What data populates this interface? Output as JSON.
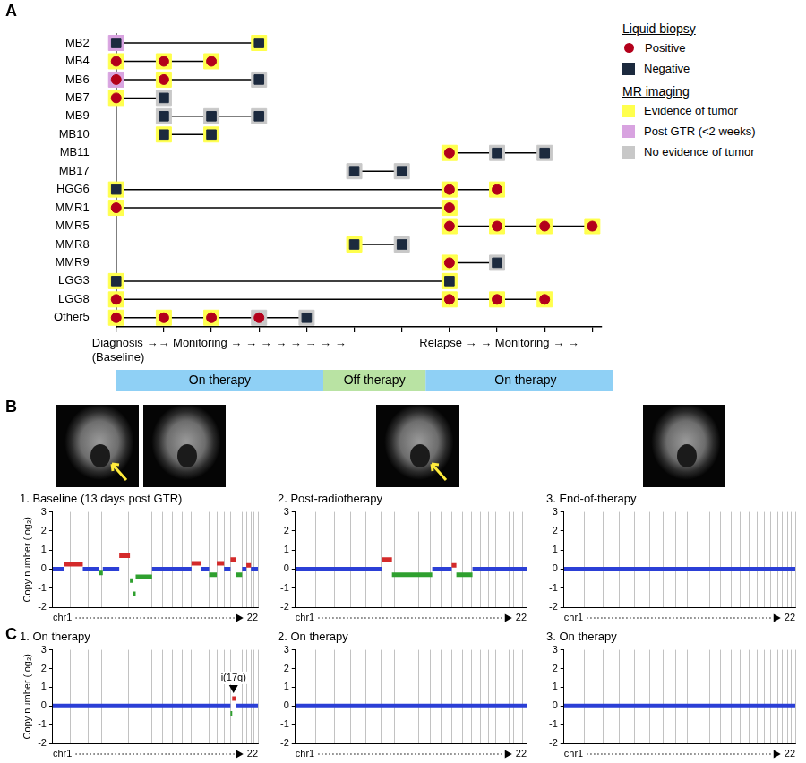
{
  "chart_data": [
    {
      "panel": "A",
      "type": "scatter",
      "categories": [
        "MB2",
        "MB4",
        "MB6",
        "MB7",
        "MB9",
        "MB10",
        "MB11",
        "MB17",
        "HGG6",
        "MMR1",
        "MMR5",
        "MMR8",
        "MMR9",
        "LGG3",
        "LGG8",
        "Other5"
      ],
      "rows": [
        {
          "x": [
            0,
            3
          ],
          "biopsy": [
            "Negative",
            "Negative"
          ],
          "mri": [
            "Post GTR (<2 weeks)",
            "Evidence of tumor"
          ]
        },
        {
          "x": [
            0,
            1,
            2
          ],
          "biopsy": [
            "Positive",
            "Positive",
            "Positive"
          ],
          "mri": [
            "Evidence of tumor",
            "Evidence of tumor",
            "Evidence of tumor"
          ]
        },
        {
          "x": [
            0,
            1,
            3
          ],
          "biopsy": [
            "Positive",
            "Positive",
            "Negative"
          ],
          "mri": [
            "Post GTR (<2 weeks)",
            "Evidence of tumor",
            "No evidence of tumor"
          ]
        },
        {
          "x": [
            0,
            1
          ],
          "biopsy": [
            "Positive",
            "Negative"
          ],
          "mri": [
            "Evidence of tumor",
            "No evidence of tumor"
          ]
        },
        {
          "x": [
            1,
            2,
            3
          ],
          "biopsy": [
            "Negative",
            "Negative",
            "Negative"
          ],
          "mri": [
            "No evidence of tumor",
            "No evidence of tumor",
            "No evidence of tumor"
          ]
        },
        {
          "x": [
            1,
            2
          ],
          "biopsy": [
            "Negative",
            "Negative"
          ],
          "mri": [
            "Evidence of tumor",
            "Evidence of tumor"
          ]
        },
        {
          "x": [
            7,
            8,
            9
          ],
          "biopsy": [
            "Positive",
            "Negative",
            "Negative"
          ],
          "mri": [
            "Evidence of tumor",
            "No evidence of tumor",
            "No evidence of tumor"
          ]
        },
        {
          "x": [
            5,
            6
          ],
          "biopsy": [
            "Negative",
            "Negative"
          ],
          "mri": [
            "No evidence of tumor",
            "No evidence of tumor"
          ]
        },
        {
          "x": [
            0,
            7,
            8
          ],
          "biopsy": [
            "Negative",
            "Positive",
            "Positive"
          ],
          "mri": [
            "Evidence of tumor",
            "Evidence of tumor",
            "Evidence of tumor"
          ]
        },
        {
          "x": [
            0,
            7
          ],
          "biopsy": [
            "Positive",
            "Positive"
          ],
          "mri": [
            "Evidence of tumor",
            "Evidence of tumor"
          ]
        },
        {
          "x": [
            7,
            8,
            9,
            10
          ],
          "biopsy": [
            "Positive",
            "Positive",
            "Positive",
            "Positive"
          ],
          "mri": [
            "Evidence of tumor",
            "Evidence of tumor",
            "Evidence of tumor",
            "Evidence of tumor"
          ]
        },
        {
          "x": [
            5,
            6
          ],
          "biopsy": [
            "Negative",
            "Negative"
          ],
          "mri": [
            "Evidence of tumor",
            "No evidence of tumor"
          ]
        },
        {
          "x": [
            7,
            8
          ],
          "biopsy": [
            "Positive",
            "Negative"
          ],
          "mri": [
            "Evidence of tumor",
            "No evidence of tumor"
          ]
        },
        {
          "x": [
            0,
            7
          ],
          "biopsy": [
            "Negative",
            "Negative"
          ],
          "mri": [
            "Evidence of tumor",
            "Evidence of tumor"
          ]
        },
        {
          "x": [
            0,
            7,
            8,
            9
          ],
          "biopsy": [
            "Positive",
            "Positive",
            "Positive",
            "Positive"
          ],
          "mri": [
            "Evidence of tumor",
            "Evidence of tumor",
            "Evidence of tumor",
            "Evidence of tumor"
          ]
        },
        {
          "x": [
            0,
            1,
            2,
            3,
            4
          ],
          "biopsy": [
            "Positive",
            "Positive",
            "Positive",
            "Positive",
            "Negative"
          ],
          "mri": [
            "Evidence of tumor",
            "Evidence of tumor",
            "Evidence of tumor",
            "No evidence of tumor",
            "No evidence of tumor"
          ]
        }
      ],
      "xlim": [
        0,
        10.2
      ],
      "xticks": [
        0,
        1,
        2,
        3,
        4,
        5,
        6,
        7,
        8,
        9,
        10
      ],
      "tick_labels": "y",
      "grid": false,
      "x_annotations": [
        "Diagnosis →→ Monitoring → → → → → → → →",
        "(Baseline)",
        "Relapse → → Monitoring → →"
      ],
      "therapy": [
        {
          "label": "On therapy",
          "start": 0,
          "end": 4.35,
          "color": "#8fd0f5"
        },
        {
          "label": "Off therapy",
          "start": 4.35,
          "end": 6.5,
          "color": "#b9e3a3"
        },
        {
          "label": "On therapy",
          "start": 6.5,
          "end": 10.7,
          "color": "#8fd0f5"
        }
      ],
      "legend": "right",
      "legend_groups": [
        {
          "title": "Liquid biopsy",
          "items": [
            {
              "name": "Positive",
              "color": "#b3001b",
              "marker": "circle"
            },
            {
              "name": "Negative",
              "color": "#1c2a3e",
              "marker": "square"
            }
          ]
        },
        {
          "title": "MR imaging",
          "items": [
            {
              "name": "Evidence of tumor",
              "color": "#ffff4d",
              "marker": "square"
            },
            {
              "name": "Post GTR (<2 weeks)",
              "color": "#d8a3e0",
              "marker": "square"
            },
            {
              "name": "No evidence of tumor",
              "color": "#c8c8c8",
              "marker": "square"
            }
          ]
        }
      ]
    },
    {
      "panel": "B",
      "type": "line",
      "title": "1. Baseline (13 days post GTR)",
      "y_label": "Copy number (log₂)",
      "xlim": [
        0,
        2872
      ],
      "xticks": [
        0,
        249,
        491,
        689,
        879,
        1060,
        1231,
        1390,
        1535,
        1673,
        1807,
        1942,
        2075,
        2189,
        2296,
        2398,
        2488,
        2571,
        2651,
        2710,
        2774,
        2821,
        2872
      ],
      "ylim": [
        -2,
        3
      ],
      "yticks": [
        -2,
        -1,
        0,
        1,
        2,
        3
      ],
      "grid": "x",
      "tick_labels": "y",
      "x_start_label": "chr1",
      "x_end_label": "22",
      "segments": [
        {
          "start": 0,
          "end": 160,
          "value": 0,
          "color": "#2b3fd6"
        },
        {
          "start": 160,
          "end": 420,
          "value": 0.25,
          "color": "#d42a2a"
        },
        {
          "start": 420,
          "end": 640,
          "value": 0,
          "color": "#2b3fd6"
        },
        {
          "start": 640,
          "end": 700,
          "value": -0.2,
          "color": "#2fa02f"
        },
        {
          "start": 700,
          "end": 930,
          "value": 0,
          "color": "#2b3fd6"
        },
        {
          "start": 930,
          "end": 1080,
          "value": 0.7,
          "color": "#d42a2a"
        },
        {
          "start": 1080,
          "end": 1120,
          "value": -0.6,
          "color": "#2fa02f"
        },
        {
          "start": 1120,
          "end": 1160,
          "value": -1.3,
          "color": "#2fa02f"
        },
        {
          "start": 1160,
          "end": 1390,
          "value": -0.4,
          "color": "#2fa02f"
        },
        {
          "start": 1390,
          "end": 1942,
          "value": 0,
          "color": "#2b3fd6"
        },
        {
          "start": 1942,
          "end": 2075,
          "value": 0.3,
          "color": "#d42a2a"
        },
        {
          "start": 2075,
          "end": 2189,
          "value": 0,
          "color": "#2b3fd6"
        },
        {
          "start": 2189,
          "end": 2296,
          "value": -0.3,
          "color": "#2fa02f"
        },
        {
          "start": 2296,
          "end": 2398,
          "value": 0.3,
          "color": "#d42a2a"
        },
        {
          "start": 2398,
          "end": 2488,
          "value": 0,
          "color": "#2b3fd6"
        },
        {
          "start": 2488,
          "end": 2571,
          "value": 0.5,
          "color": "#d42a2a"
        },
        {
          "start": 2571,
          "end": 2651,
          "value": -0.3,
          "color": "#2fa02f"
        },
        {
          "start": 2651,
          "end": 2710,
          "value": 0,
          "color": "#2b3fd6"
        },
        {
          "start": 2710,
          "end": 2774,
          "value": 0.2,
          "color": "#d42a2a"
        },
        {
          "start": 2774,
          "end": 2872,
          "value": 0,
          "color": "#2b3fd6"
        }
      ]
    },
    {
      "type": "line",
      "title": "2. Post-radiotherapy",
      "xlim": [
        0,
        2872
      ],
      "xticks": [
        0,
        249,
        491,
        689,
        879,
        1060,
        1231,
        1390,
        1535,
        1673,
        1807,
        1942,
        2075,
        2189,
        2296,
        2398,
        2488,
        2571,
        2651,
        2710,
        2774,
        2821,
        2872
      ],
      "ylim": [
        -2,
        3
      ],
      "yticks": [
        -2,
        -1,
        0,
        1,
        2,
        3
      ],
      "grid": "x",
      "tick_labels": "y",
      "x_start_label": "chr1",
      "x_end_label": "22",
      "segments": [
        {
          "start": 0,
          "end": 1080,
          "value": 0,
          "color": "#2b3fd6"
        },
        {
          "start": 1080,
          "end": 1200,
          "value": 0.5,
          "color": "#d42a2a"
        },
        {
          "start": 1200,
          "end": 1700,
          "value": -0.3,
          "color": "#2fa02f"
        },
        {
          "start": 1700,
          "end": 1942,
          "value": 0,
          "color": "#2b3fd6"
        },
        {
          "start": 1942,
          "end": 2000,
          "value": 0.2,
          "color": "#d42a2a"
        },
        {
          "start": 2000,
          "end": 2200,
          "value": -0.3,
          "color": "#2fa02f"
        },
        {
          "start": 2200,
          "end": 2872,
          "value": 0,
          "color": "#2b3fd6"
        }
      ]
    },
    {
      "type": "line",
      "title": "3. End-of-therapy",
      "xlim": [
        0,
        2872
      ],
      "xticks": [
        0,
        249,
        491,
        689,
        879,
        1060,
        1231,
        1390,
        1535,
        1673,
        1807,
        1942,
        2075,
        2189,
        2296,
        2398,
        2488,
        2571,
        2651,
        2710,
        2774,
        2821,
        2872
      ],
      "ylim": [
        -2,
        3
      ],
      "yticks": [
        -2,
        -1,
        0,
        1,
        2,
        3
      ],
      "grid": "x",
      "tick_labels": "y",
      "x_start_label": "chr1",
      "x_end_label": "22",
      "segments": [
        {
          "start": 0,
          "end": 2872,
          "value": 0,
          "color": "#2b3fd6"
        }
      ]
    },
    {
      "panel": "C",
      "type": "line",
      "title": "1. On therapy",
      "y_label": "Copy number (log₂)",
      "xlim": [
        0,
        2872
      ],
      "xticks": [
        0,
        249,
        491,
        689,
        879,
        1060,
        1231,
        1390,
        1535,
        1673,
        1807,
        1942,
        2075,
        2189,
        2296,
        2398,
        2488,
        2571,
        2651,
        2710,
        2774,
        2821,
        2872
      ],
      "ylim": [
        -2,
        3
      ],
      "yticks": [
        -2,
        -1,
        0,
        1,
        2,
        3
      ],
      "grid": "x",
      "tick_labels": "y",
      "x_start_label": "chr1",
      "x_end_label": "22",
      "segments": [
        {
          "start": 0,
          "end": 2488,
          "value": 0,
          "color": "#2b3fd6"
        },
        {
          "start": 2488,
          "end": 2512,
          "value": -0.4,
          "color": "#2fa02f"
        },
        {
          "start": 2512,
          "end": 2571,
          "value": 0.4,
          "color": "#d42a2a"
        },
        {
          "start": 2571,
          "end": 2872,
          "value": 0,
          "color": "#2b3fd6"
        }
      ],
      "annotations": [
        {
          "text": "i(17q)",
          "x": 2530,
          "y": 0.4
        }
      ]
    },
    {
      "type": "line",
      "title": "2. On therapy",
      "xlim": [
        0,
        2872
      ],
      "xticks": [
        0,
        249,
        491,
        689,
        879,
        1060,
        1231,
        1390,
        1535,
        1673,
        1807,
        1942,
        2075,
        2189,
        2296,
        2398,
        2488,
        2571,
        2651,
        2710,
        2774,
        2821,
        2872
      ],
      "ylim": [
        -2,
        3
      ],
      "yticks": [
        -2,
        -1,
        0,
        1,
        2,
        3
      ],
      "grid": "x",
      "tick_labels": "y",
      "x_start_label": "chr1",
      "x_end_label": "22",
      "segments": [
        {
          "start": 0,
          "end": 2872,
          "value": 0,
          "color": "#2b3fd6"
        }
      ]
    },
    {
      "type": "line",
      "title": "3. On therapy",
      "xlim": [
        0,
        2872
      ],
      "xticks": [
        0,
        249,
        491,
        689,
        879,
        1060,
        1231,
        1390,
        1535,
        1673,
        1807,
        1942,
        2075,
        2189,
        2296,
        2398,
        2488,
        2571,
        2651,
        2710,
        2774,
        2821,
        2872
      ],
      "ylim": [
        -2,
        3
      ],
      "yticks": [
        -2,
        -1,
        0,
        1,
        2,
        3
      ],
      "grid": "x",
      "tick_labels": "y",
      "x_start_label": "chr1",
      "x_end_label": "22",
      "segments": [
        {
          "start": 0,
          "end": 2872,
          "value": 0,
          "color": "#2b3fd6"
        }
      ]
    }
  ]
}
